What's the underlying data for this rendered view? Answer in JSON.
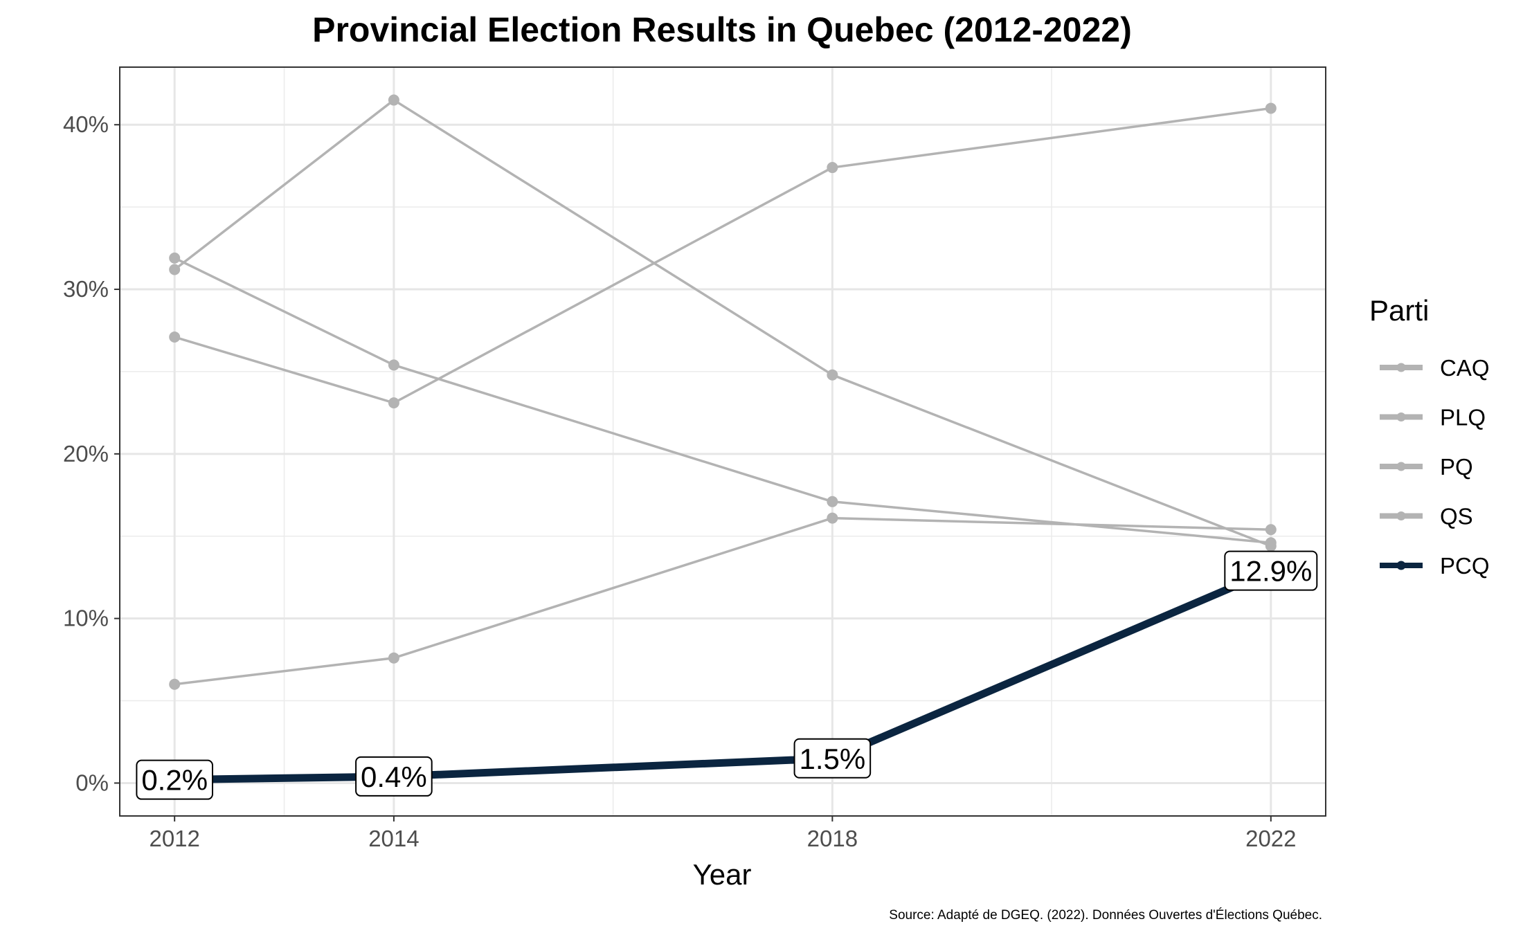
{
  "chart_data": {
    "type": "line",
    "title": "Provincial Election Results in Quebec (2012-2022)",
    "xlabel": "Year",
    "ylabel": "",
    "x": [
      2012,
      2014,
      2018,
      2022
    ],
    "x_tick_labels": [
      "2012",
      "2014",
      "2018",
      "2022"
    ],
    "xlim": [
      2011.5,
      2022.5
    ],
    "ylim": [
      -2,
      43.5
    ],
    "y_ticks": [
      0,
      10,
      20,
      30,
      40
    ],
    "y_tick_labels": [
      "0%",
      "10%",
      "20%",
      "30%",
      "40%"
    ],
    "grid": true,
    "legend_title": "Parti",
    "legend_position": "right",
    "series": [
      {
        "name": "CAQ",
        "values": [
          27.1,
          23.1,
          37.4,
          41.0
        ],
        "color": "#b3b3b3"
      },
      {
        "name": "PLQ",
        "values": [
          31.2,
          41.5,
          24.8,
          14.4
        ],
        "color": "#b3b3b3"
      },
      {
        "name": "PQ",
        "values": [
          31.9,
          25.4,
          17.1,
          14.6
        ],
        "color": "#b3b3b3"
      },
      {
        "name": "QS",
        "values": [
          6.0,
          7.6,
          16.1,
          15.4
        ],
        "color": "#b3b3b3"
      },
      {
        "name": "PCQ",
        "values": [
          0.2,
          0.4,
          1.5,
          12.9
        ],
        "color": "#0b2540",
        "highlight": true
      }
    ],
    "data_labels": [
      "0.2%",
      "0.4%",
      "1.5%",
      "12.9%"
    ],
    "caption": "Source: Adapté de DGEQ. (2022). Données Ouvertes d'Élections Québec."
  }
}
